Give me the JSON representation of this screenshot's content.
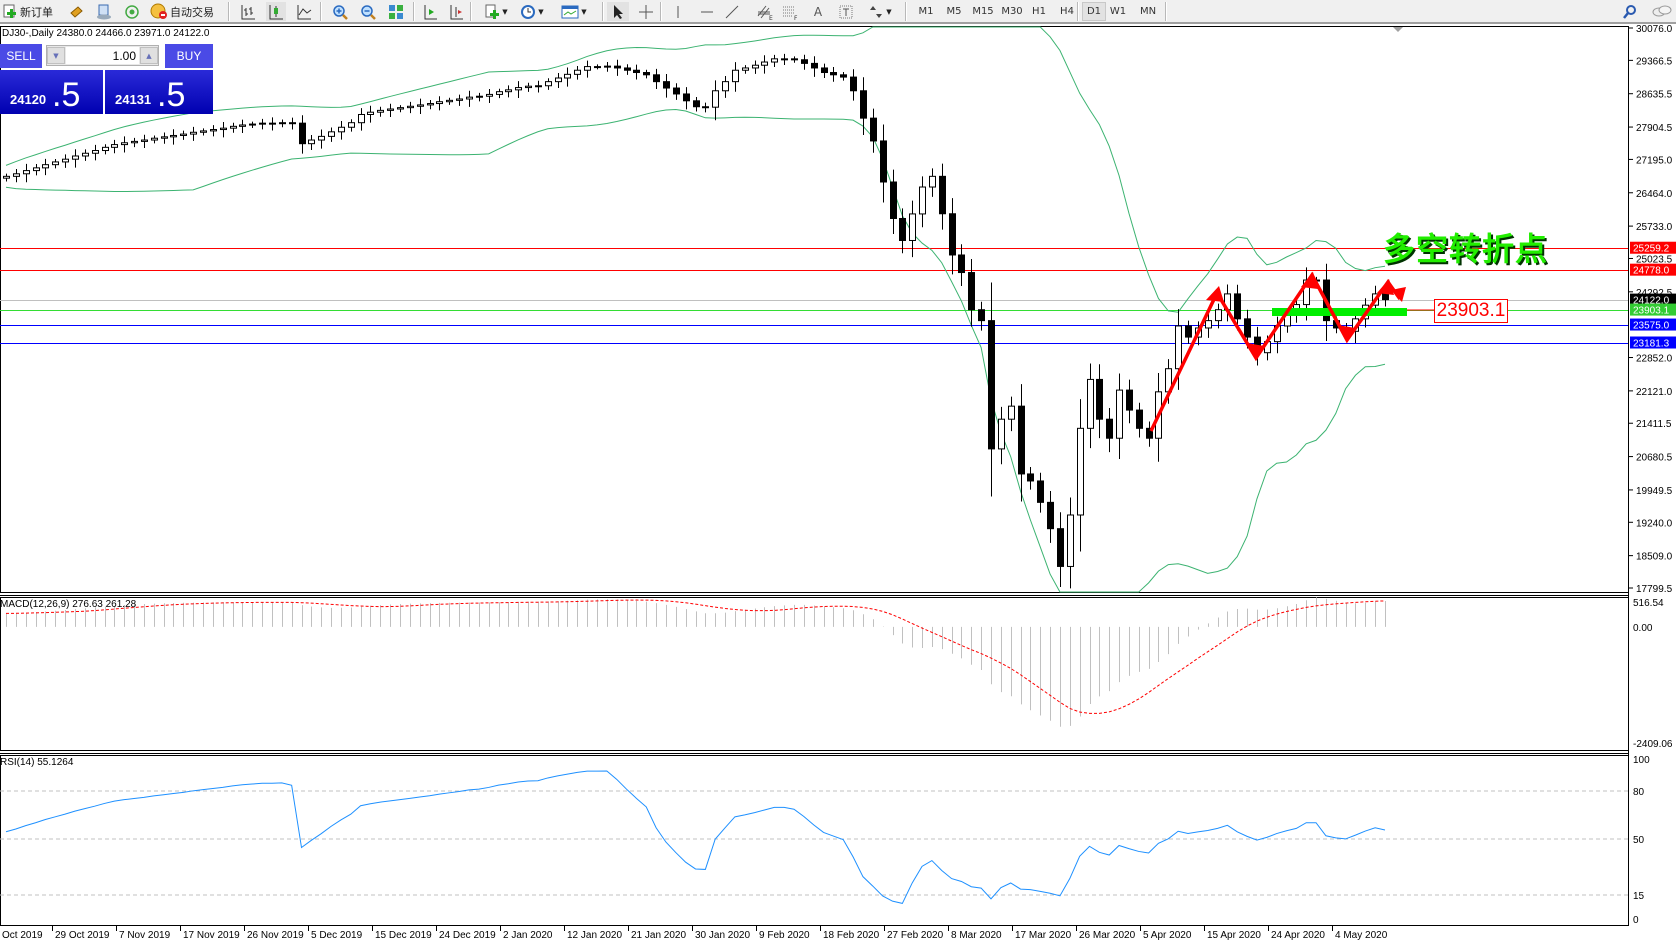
{
  "toolbar": {
    "new_order": "新订单",
    "auto_trading": "自动交易",
    "timeframes": [
      "M1",
      "M5",
      "M15",
      "M30",
      "H1",
      "H4",
      "D1",
      "W1",
      "MN"
    ],
    "selected_timeframe": "D1",
    "icons": [
      "new-order-icon",
      "navigator-icon",
      "terminal-icon",
      "market-watch-icon",
      "auto-trading-icon",
      "bar-chart-icon",
      "candlestick-icon",
      "line-chart-icon",
      "zoom-in-icon",
      "zoom-out-icon",
      "tile-windows-icon",
      "auto-scroll-icon",
      "chart-shift-icon",
      "indicators-icon",
      "periods-icon",
      "templates-icon",
      "cursor-icon",
      "crosshair-icon",
      "vertical-line-icon",
      "horizontal-line-icon",
      "trendline-icon",
      "equidistant-channel-icon",
      "fibonacci-icon",
      "text-icon",
      "text-label-icon",
      "shapes-icon",
      "search-icon",
      "chat-icon"
    ]
  },
  "chart": {
    "header": "DJ30-,Daily  24380.0 24466.0 23971.0 24122.0",
    "symbol": "DJ30-",
    "period": "Daily",
    "last_bar": {
      "open": 24380.0,
      "high": 24466.0,
      "low": 23971.0,
      "close": 24122.0
    },
    "closes": [
      26824,
      26880,
      26950,
      27010,
      27080,
      27140,
      27200,
      27270,
      27330,
      27390,
      27460,
      27520,
      27560,
      27590,
      27620,
      27660,
      27690,
      27720,
      27750,
      27790,
      27820,
      27850,
      27880,
      27920,
      27950,
      27970,
      27990,
      27990,
      28000,
      27990,
      27540,
      27620,
      27700,
      27800,
      27900,
      28000,
      28180,
      28230,
      28270,
      28300,
      28330,
      28360,
      28390,
      28420,
      28460,
      28490,
      28520,
      28560,
      28580,
      28620,
      28680,
      28720,
      28770,
      28800,
      28810,
      28900,
      28980,
      29060,
      29150,
      29230,
      29230,
      29240,
      29200,
      29150,
      29100,
      29050,
      28900,
      28760,
      28630,
      28480,
      28350,
      28340,
      28700,
      28900,
      29150,
      29200,
      29260,
      29330,
      29400,
      29400,
      29380,
      29300,
      29200,
      29100,
      29050,
      29000,
      28700,
      28100,
      27600,
      26700,
      25900,
      25418,
      26000,
      26590,
      26824,
      26004,
      25100,
      24715,
      23900,
      23661,
      20849,
      21500,
      21786,
      20300,
      20146,
      19677,
      19100,
      18272,
      19400,
      21300,
      22372,
      21500,
      21083,
      22138,
      21700,
      21300,
      21083,
      22100,
      22607,
      23544,
      23300,
      23500,
      23661,
      23900,
      24247,
      23700,
      23300,
      22958,
      23200,
      23544,
      23800,
      24013,
      24551,
      24551,
      23661,
      23500,
      23427,
      23700,
      24000,
      24247,
      24122
    ],
    "price_axis": [
      "30076.0",
      "29366.5",
      "28635.5",
      "27904.5",
      "27195.0",
      "26464.0",
      "25733.0",
      "25023.5",
      "24292.5",
      "22852.0",
      "22121.0",
      "21411.5",
      "20680.5",
      "19949.5",
      "19240.0",
      "18509.0",
      "17799.5"
    ],
    "price_range": [
      17799.5,
      30076.0
    ],
    "levels": [
      {
        "price": "25259.2",
        "color": "#ff0000"
      },
      {
        "price": "24778.0",
        "color": "#ff0000"
      },
      {
        "price": "24122.0",
        "color": "#000000",
        "line_color": "#c0c0c0"
      },
      {
        "price": "23903.1",
        "color": "#33cc33",
        "line_color": "#33dd33"
      },
      {
        "price": "23575.0",
        "color": "#0000ff"
      },
      {
        "price": "23181.3",
        "color": "#0000ff"
      }
    ],
    "bollinger_color": "#3cb371",
    "annotation_text": "多空转折点",
    "annotation_level": "23903.1",
    "annotation_colors": {
      "text": "#22ee00",
      "zigzag": "#ff0000",
      "zone": "#00ee00"
    }
  },
  "macd": {
    "label": "MACD(12,26,9) 276.63 261.28",
    "axis": [
      "516.54",
      "0.00",
      "-2409.06"
    ],
    "range": [
      -2409.06,
      516.54
    ],
    "signal_color": "#ff0000",
    "histogram_color": "#c0c0c0"
  },
  "rsi": {
    "label": "RSI(14) 55.1264",
    "axis": [
      "100",
      "80",
      "50",
      "15",
      "0"
    ],
    "levels": [
      80,
      50,
      15
    ],
    "line_color": "#1e90ff"
  },
  "dates": [
    "Oct 2019",
    "29 Oct 2019",
    "7 Nov 2019",
    "17 Nov 2019",
    "26 Nov 2019",
    "5 Dec 2019",
    "15 Dec 2019",
    "24 Dec 2019",
    "2 Jan 2020",
    "12 Jan 2020",
    "21 Jan 2020",
    "30 Jan 2020",
    "9 Feb 2020",
    "18 Feb 2020",
    "27 Feb 2020",
    "8 Mar 2020",
    "17 Mar 2020",
    "26 Mar 2020",
    "5 Apr 2020",
    "15 Apr 2020",
    "24 Apr 2020",
    "4 May 2020"
  ],
  "one_click": {
    "sell_label": "SELL",
    "buy_label": "BUY",
    "lot": "1.00",
    "sell_price_main": "24120",
    "sell_price_big": ".5",
    "buy_price_main": "24131",
    "buy_price_big": ".5"
  }
}
